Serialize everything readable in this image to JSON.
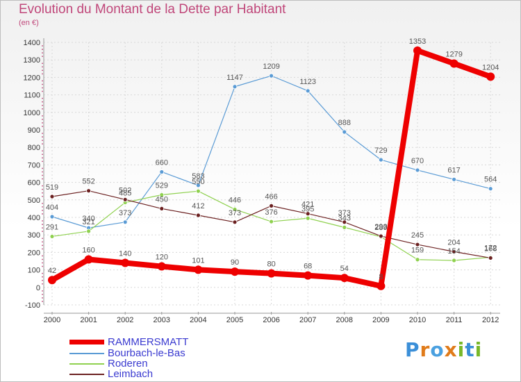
{
  "title": "Evolution du Montant de la Dette par Habitant",
  "unit_label": "(en €)",
  "logo": {
    "letters": [
      "P",
      "r",
      "o",
      "x",
      "i",
      "t",
      "i"
    ],
    "colors": [
      "#3b8fd8",
      "#e07b1a",
      "#4aa0e0",
      "#e07b1a",
      "#78b82a",
      "#3b8fd8",
      "#78b82a"
    ]
  },
  "chart_data": {
    "type": "line",
    "title": "Evolution du Montant de la Dette par Habitant",
    "ylabel": "(en €)",
    "xlabel": "",
    "x": [
      "2000",
      "2001",
      "2002",
      "2003",
      "2004",
      "2005",
      "2006",
      "2007",
      "2008",
      "2009",
      "2010",
      "2011",
      "2012"
    ],
    "ylim": [
      -100,
      1400
    ],
    "yticks": [
      "-100",
      "0",
      "100",
      "200",
      "300",
      "400",
      "500",
      "600",
      "700",
      "800",
      "900",
      "1000",
      "1100",
      "1200",
      "1300",
      "1400"
    ],
    "grid": true,
    "legend_position": "bottom-left",
    "series": [
      {
        "name": "RAMMERSMATT",
        "color": "#ee0000",
        "values": [
          42,
          160,
          140,
          120,
          101,
          90,
          80,
          68,
          54,
          8,
          1353,
          1279,
          1204
        ],
        "labels": [
          "42",
          "160",
          "140",
          "120",
          "101",
          "90",
          "80",
          "68",
          "54",
          "8",
          "1353",
          "1279",
          "1204"
        ]
      },
      {
        "name": "Bourbach-le-Bas",
        "color": "#5a9bd5",
        "values": [
          404,
          340,
          373,
          660,
          583,
          1147,
          1209,
          1123,
          888,
          729,
          670,
          617,
          564
        ],
        "labels": [
          "404",
          "340",
          "373",
          "660",
          "583",
          "1147",
          "1209",
          "1123",
          "888",
          "729",
          "670",
          "617",
          "564"
        ]
      },
      {
        "name": "Roderen",
        "color": "#8fd14f",
        "values": [
          291,
          321,
          485,
          529,
          550,
          446,
          376,
          395,
          343,
          289,
          159,
          154,
          172
        ],
        "labels": [
          "291",
          "321",
          "485",
          "529",
          "550",
          "446",
          "376",
          "395",
          "343",
          "289",
          "159",
          "154",
          "172"
        ]
      },
      {
        "name": "Leimbach",
        "color": "#6b2020",
        "values": [
          519,
          552,
          502,
          450,
          412,
          373,
          466,
          421,
          373,
          293,
          245,
          204,
          168
        ],
        "labels": [
          "519",
          "552",
          "502",
          "450",
          "412",
          "373",
          "466",
          "421",
          "373",
          "293",
          "245",
          "204",
          "168"
        ]
      }
    ]
  }
}
